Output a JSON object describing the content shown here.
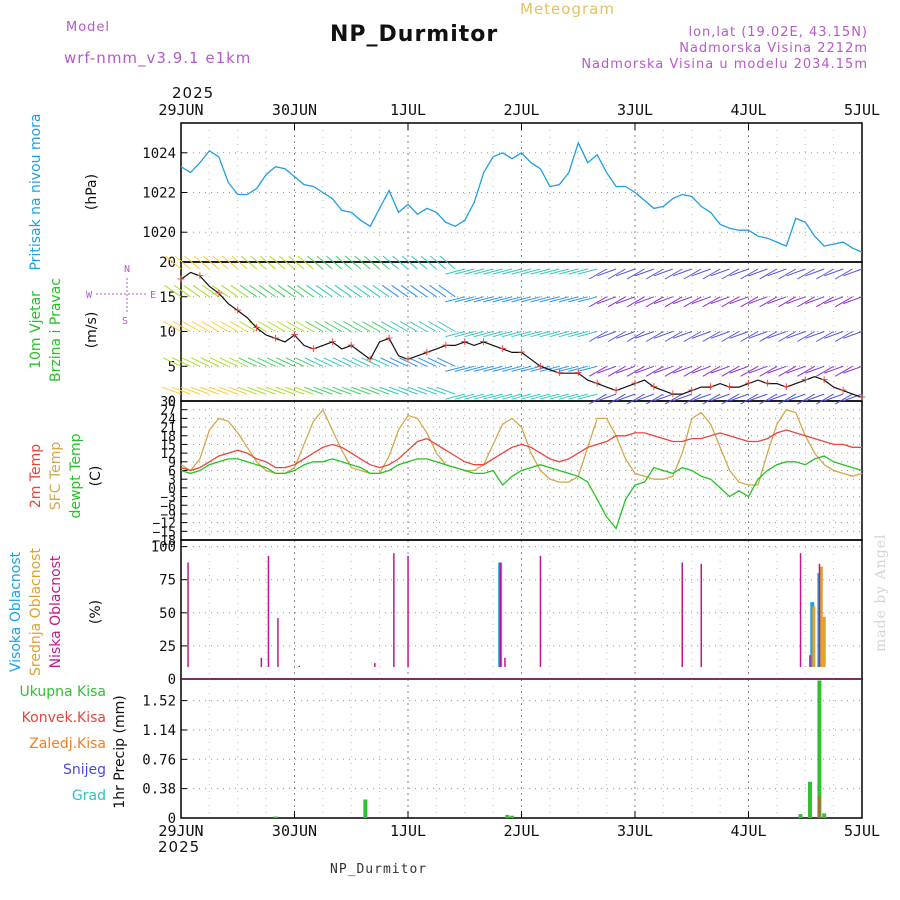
{
  "header": {
    "model_label": "Model",
    "model_name": "wrf-nmm_v3.9.1  e1km",
    "station": "NP_Durmitor",
    "product": "Meteogram",
    "lonlat": "lon,lat (19.02E, 43.15N)",
    "elevation": "Nadmorska Visina 2212m",
    "model_elevation": "Nadmorska Visina u modelu 2034.15m",
    "year_top": "2025",
    "year_bottom": "2025",
    "footer_station": "NP_Durmitor",
    "credit": "made by Angel"
  },
  "colors": {
    "pressure": "#1e9fe0",
    "temp2m": "#e8453c",
    "sfc": "#d4a84a",
    "dewpt": "#22c422",
    "cloud_high": "#1aa3e6",
    "cloud_mid": "#e0a030",
    "cloud_low": "#c0188c",
    "precip_total": "#33c033",
    "precip_conv": "#e8453c",
    "precip_frozen": "#f08020",
    "snow": "#4a4ae0",
    "hail": "#30c0c0",
    "title_purple": "#b45ac8",
    "meteogram_label": "#e8c060"
  },
  "chart_data": [
    {
      "type": "line",
      "title": "",
      "ylabel": "Pritisak na nivou mora",
      "yunit": "(hPa)",
      "ylim": [
        1018.5,
        1025.5
      ],
      "yticks": [
        1020,
        1022,
        1024
      ],
      "xlim": [
        0,
        144
      ],
      "xtick_labels": [
        "29JUN",
        "30JUN",
        "1JUL",
        "2JUL",
        "3JUL",
        "4JUL",
        "5JUL"
      ],
      "x": [
        0,
        2,
        4,
        6,
        8,
        10,
        12,
        14,
        16,
        18,
        20,
        22,
        24,
        26,
        28,
        30,
        32,
        34,
        36,
        38,
        40,
        42,
        44,
        46,
        48,
        50,
        52,
        54,
        56,
        58,
        60,
        62,
        64,
        66,
        68,
        70,
        72,
        74,
        76,
        78,
        80,
        82,
        84,
        86,
        88,
        90,
        92,
        94,
        96,
        98,
        100,
        102,
        104,
        106,
        108,
        110,
        112,
        114,
        116,
        118,
        120,
        122,
        124,
        126,
        128,
        130,
        132,
        134,
        136,
        138,
        140,
        142,
        144
      ],
      "series": [
        {
          "name": "",
          "values": [
            1023.3,
            1023.0,
            1023.5,
            1024.1,
            1023.8,
            1022.5,
            1021.9,
            1021.9,
            1022.2,
            1022.9,
            1023.3,
            1023.2,
            1022.8,
            1022.4,
            1022.3,
            1022.0,
            1021.7,
            1021.1,
            1021.0,
            1020.6,
            1020.3,
            1021.2,
            1022.1,
            1021.0,
            1021.4,
            1020.9,
            1021.2,
            1021.0,
            1020.5,
            1020.3,
            1020.6,
            1021.5,
            1023.0,
            1023.8,
            1024.0,
            1023.7,
            1024.0,
            1023.5,
            1023.2,
            1022.3,
            1022.4,
            1023.0,
            1024.5,
            1023.5,
            1023.9,
            1023.0,
            1022.3,
            1022.3,
            1022.0,
            1021.6,
            1021.2,
            1021.3,
            1021.7,
            1021.9,
            1021.8,
            1021.3,
            1021.0,
            1020.4,
            1020.2,
            1020.1,
            1020.1,
            1019.8,
            1019.7,
            1019.5,
            1019.3,
            1020.7,
            1020.5,
            1019.8,
            1019.3,
            1019.4,
            1019.5,
            1019.2,
            1019.0
          ]
        }
      ]
    },
    {
      "type": "line",
      "title": "",
      "ylabel": "10m Vjetar Brzina i Pravac",
      "yunit": "(m/s)",
      "ylim": [
        0,
        20
      ],
      "yticks": [
        0,
        5,
        10,
        15,
        20
      ],
      "direction_key": [
        "N",
        "W",
        "E",
        "S"
      ],
      "series": [
        {
          "name": "",
          "x": [
            0,
            2,
            4,
            6,
            8,
            10,
            12,
            14,
            16,
            18,
            20,
            22,
            24,
            26,
            28,
            30,
            32,
            34,
            36,
            38,
            40,
            42,
            44,
            46,
            48,
            50,
            52,
            54,
            56,
            58,
            60,
            62,
            64,
            66,
            68,
            70,
            72,
            74,
            76,
            78,
            80,
            82,
            84,
            86,
            88,
            90,
            92,
            94,
            96,
            98,
            100,
            102,
            104,
            106,
            108,
            110,
            112,
            114,
            116,
            118,
            120,
            122,
            124,
            126,
            128,
            130,
            132,
            134,
            136,
            138,
            140,
            142,
            144
          ],
          "values": [
            17.5,
            18.5,
            18.0,
            16.5,
            15.5,
            14.0,
            13.0,
            12.0,
            10.5,
            9.5,
            9.0,
            8.5,
            9.5,
            8.0,
            7.5,
            8.0,
            8.5,
            7.5,
            8.0,
            7.0,
            6.0,
            8.5,
            9.0,
            6.5,
            6.0,
            6.5,
            7.0,
            7.5,
            8.0,
            8.0,
            8.5,
            8.0,
            8.5,
            8.0,
            7.5,
            7.0,
            7.0,
            6.0,
            5.0,
            4.5,
            4.0,
            4.0,
            4.0,
            3.0,
            2.5,
            2.0,
            1.5,
            2.0,
            2.5,
            3.0,
            2.0,
            1.5,
            1.0,
            1.0,
            1.5,
            2.0,
            2.0,
            2.5,
            2.0,
            2.0,
            2.5,
            3.0,
            2.5,
            2.5,
            2.0,
            2.5,
            3.0,
            3.5,
            3.0,
            2.0,
            1.5,
            1.0,
            0.5
          ]
        }
      ]
    },
    {
      "type": "line",
      "title": "",
      "ylabel": "2m Temp / SFC Temp / dewpt Temp",
      "yunit": "(C)",
      "ylim": [
        -18,
        30
      ],
      "yticks": [
        -18,
        -15,
        -12,
        -9,
        -6,
        -3,
        0,
        3,
        6,
        9,
        12,
        15,
        18,
        21,
        24,
        27,
        30
      ],
      "x": [
        0,
        2,
        4,
        6,
        8,
        10,
        12,
        14,
        16,
        18,
        20,
        22,
        24,
        26,
        28,
        30,
        32,
        34,
        36,
        38,
        40,
        42,
        44,
        46,
        48,
        50,
        52,
        54,
        56,
        58,
        60,
        62,
        64,
        66,
        68,
        70,
        72,
        74,
        76,
        78,
        80,
        82,
        84,
        86,
        88,
        90,
        92,
        94,
        96,
        98,
        100,
        102,
        104,
        106,
        108,
        110,
        112,
        114,
        116,
        118,
        120,
        122,
        124,
        126,
        128,
        130,
        132,
        134,
        136,
        138,
        140,
        142,
        144
      ],
      "series": [
        {
          "name": "2m Temp",
          "values": [
            7,
            6,
            7,
            9,
            11,
            12,
            13,
            12,
            10,
            9,
            7,
            7,
            8,
            10,
            12,
            14,
            15,
            14,
            12,
            10,
            8,
            7,
            8,
            10,
            13,
            16,
            17,
            15,
            13,
            11,
            9,
            8,
            8,
            10,
            12,
            14,
            15,
            14,
            12,
            10,
            9,
            10,
            12,
            14,
            15,
            16,
            18,
            18,
            19,
            19,
            18,
            17,
            16,
            16,
            17,
            17,
            18,
            19,
            18,
            17,
            16,
            16,
            17,
            19,
            20,
            19,
            18,
            17,
            16,
            15,
            15,
            14,
            14
          ]
        },
        {
          "name": "SFC Temp",
          "values": [
            8,
            6,
            10,
            20,
            24,
            23,
            19,
            14,
            9,
            6,
            5,
            5,
            7,
            15,
            23,
            27,
            20,
            13,
            7,
            6,
            5,
            5,
            11,
            20,
            25,
            24,
            19,
            12,
            8,
            7,
            6,
            6,
            8,
            15,
            22,
            24,
            21,
            12,
            6,
            3,
            2,
            2,
            4,
            14,
            24,
            24,
            18,
            10,
            5,
            4,
            3,
            3,
            4,
            12,
            24,
            26,
            22,
            14,
            6,
            2,
            1,
            1,
            12,
            22,
            27,
            26,
            18,
            12,
            8,
            6,
            5,
            4,
            5
          ]
        },
        {
          "name": "dewpt Temp",
          "values": [
            6,
            5,
            6,
            8,
            9,
            10,
            10,
            9,
            8,
            7,
            5,
            5,
            6,
            8,
            9,
            9,
            10,
            9,
            8,
            7,
            5,
            5,
            6,
            8,
            9,
            10,
            10,
            9,
            8,
            7,
            6,
            5,
            5,
            6,
            1,
            4,
            6,
            7,
            8,
            7,
            6,
            5,
            4,
            2,
            -4,
            -10,
            -14,
            -4,
            1,
            2,
            7,
            6,
            5,
            7,
            6,
            4,
            3,
            0,
            -3,
            -1,
            -3,
            3,
            6,
            8,
            9,
            9,
            8,
            10,
            11,
            9,
            8,
            7,
            6
          ]
        }
      ]
    },
    {
      "type": "bar",
      "title": "",
      "ylabel": "Visoka Oblacnost / Srednja Oblacnost / Niska Oblacnost",
      "yunit": "(%)",
      "ylim": [
        0,
        105
      ],
      "yticks": [
        0,
        25,
        50,
        75,
        100
      ],
      "series": [
        {
          "name": "Visoka Oblacnost",
          "x": [
            67.5,
            133.5,
            135
          ],
          "values": [
            88,
            58,
            80
          ]
        },
        {
          "name": "Srednja Oblacnost",
          "x": [
            67.5,
            133.8,
            135.4,
            136
          ],
          "values": [
            3,
            55,
            85,
            47
          ]
        },
        {
          "name": "Niska Oblacnost",
          "x": [
            1.5,
            17,
            18.5,
            20.5,
            22,
            25,
            26,
            29,
            31,
            33,
            35,
            38,
            41,
            45,
            48,
            56,
            67.5,
            68.5,
            76,
            106,
            110,
            131,
            133,
            135
          ],
          "values": [
            88,
            16,
            93,
            46,
            6,
            10,
            9,
            9,
            9,
            8,
            8,
            6,
            12,
            95,
            93,
            8,
            88,
            16,
            93,
            88,
            87,
            95,
            18,
            87
          ]
        }
      ]
    },
    {
      "type": "bar",
      "title": "",
      "ylabel": "1hr Precip",
      "yunit": "(mm)",
      "ylim": [
        0,
        1.8
      ],
      "yticks": [
        0,
        0.38,
        0.76,
        1.14,
        1.52
      ],
      "ytick_labels": [
        "0",
        "0.38",
        "0.76",
        "1.14",
        "1.52"
      ],
      "series": [
        {
          "name": "Ukupna Kisa",
          "x": [
            20,
            39,
            69,
            70,
            131,
            133,
            135,
            136
          ],
          "values": [
            0.02,
            0.24,
            0.04,
            0.03,
            0.05,
            0.47,
            1.78,
            0.06
          ]
        },
        {
          "name": "Konvek.Kisa",
          "x": [
            135
          ],
          "values": [
            0.28
          ]
        },
        {
          "name": "Zaledj.Kisa",
          "x": [],
          "values": []
        },
        {
          "name": "Snijeg",
          "x": [],
          "values": []
        },
        {
          "name": "Grad",
          "x": [],
          "values": []
        }
      ]
    }
  ]
}
